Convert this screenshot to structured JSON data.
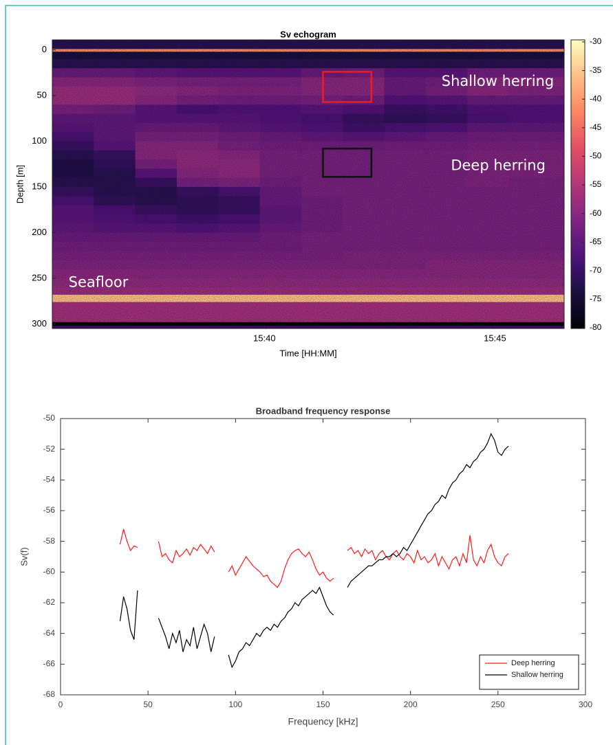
{
  "chart_data": [
    {
      "type": "heatmap",
      "title": "Sv echogram",
      "xlabel": "Time [HH:MM]",
      "ylabel": "Depth [m]",
      "xlim": [
        35.4,
        46.5
      ],
      "xticks": [
        {
          "value": 40,
          "label": "15:40"
        },
        {
          "value": 45,
          "label": "15:45"
        }
      ],
      "ylim": [
        -11,
        305
      ],
      "yticks": [
        0,
        50,
        100,
        150,
        200,
        250,
        300
      ],
      "y_reversed": true,
      "colormap": "magma",
      "zlim": [
        -80,
        -30
      ],
      "zticks": [
        -30,
        -35,
        -40,
        -45,
        -50,
        -55,
        -60,
        -65,
        -70,
        -75,
        -80
      ],
      "xbins": [
        35.4,
        36.3,
        37.2,
        38.1,
        39.0,
        39.9,
        40.8,
        41.7,
        42.6,
        43.5,
        44.4,
        45.3,
        46.5
      ],
      "ybins": [
        -11,
        -1,
        2,
        10,
        20,
        30,
        40,
        50,
        60,
        70,
        80,
        90,
        100,
        110,
        120,
        130,
        140,
        150,
        160,
        170,
        180,
        190,
        200,
        210,
        220,
        230,
        240,
        250,
        260,
        268,
        276,
        298,
        302,
        305
      ],
      "z": [
        [
          -72,
          -72,
          -72,
          -72,
          -72,
          -72,
          -72,
          -72,
          -72,
          -72,
          -72,
          -72
        ],
        [
          -42,
          -42,
          -42,
          -42,
          -42,
          -42,
          -42,
          -42,
          -42,
          -42,
          -42,
          -42
        ],
        [
          -74,
          -74,
          -74,
          -74,
          -74,
          -74,
          -74,
          -74,
          -74,
          -74,
          -74,
          -74
        ],
        [
          -72,
          -72,
          -72,
          -72,
          -72,
          -72,
          -72,
          -72,
          -72,
          -72,
          -72,
          -72
        ],
        [
          -64,
          -64,
          -65,
          -66,
          -66,
          -66,
          -64,
          -63,
          -66,
          -66,
          -63,
          -63
        ],
        [
          -60,
          -60,
          -61,
          -62,
          -62,
          -62,
          -60,
          -60,
          -64,
          -63,
          -60,
          -60
        ],
        [
          -58,
          -58,
          -59,
          -60,
          -61,
          -61,
          -60,
          -60,
          -64,
          -62,
          -60,
          -61
        ],
        [
          -58,
          -58,
          -60,
          -62,
          -63,
          -63,
          -62,
          -63,
          -67,
          -66,
          -64,
          -64
        ],
        [
          -62,
          -63,
          -66,
          -68,
          -67,
          -67,
          -66,
          -67,
          -70,
          -69,
          -67,
          -67
        ],
        [
          -65,
          -65,
          -66,
          -66,
          -66,
          -67,
          -68,
          -70,
          -71,
          -70,
          -68,
          -67
        ],
        [
          -66,
          -65,
          -64,
          -64,
          -65,
          -66,
          -67,
          -69,
          -68,
          -67,
          -65,
          -65
        ],
        [
          -68,
          -65,
          -62,
          -62,
          -63,
          -64,
          -65,
          -66,
          -65,
          -64,
          -63,
          -63
        ],
        [
          -70,
          -66,
          -60,
          -60,
          -62,
          -63,
          -63,
          -63,
          -63,
          -63,
          -62,
          -62
        ],
        [
          -72,
          -70,
          -60,
          -59,
          -60,
          -62,
          -62,
          -62,
          -62,
          -62,
          -61,
          -61
        ],
        [
          -73,
          -71,
          -62,
          -59,
          -59,
          -62,
          -62,
          -62,
          -62,
          -62,
          -61,
          -61
        ],
        [
          -73,
          -72,
          -66,
          -60,
          -59,
          -62,
          -62,
          -62,
          -62,
          -62,
          -61,
          -61
        ],
        [
          -72,
          -72,
          -70,
          -62,
          -61,
          -63,
          -62,
          -62,
          -62,
          -62,
          -61,
          -62
        ],
        [
          -70,
          -72,
          -72,
          -70,
          -68,
          -64,
          -62,
          -62,
          -62,
          -62,
          -62,
          -62
        ],
        [
          -68,
          -71,
          -72,
          -71,
          -70,
          -64,
          -63,
          -62,
          -62,
          -62,
          -62,
          -62
        ],
        [
          -66,
          -68,
          -70,
          -71,
          -70,
          -65,
          -63,
          -62,
          -62,
          -62,
          -62,
          -62
        ],
        [
          -66,
          -67,
          -68,
          -69,
          -68,
          -65,
          -63,
          -62,
          -62,
          -62,
          -62,
          -62
        ],
        [
          -65,
          -66,
          -66,
          -67,
          -66,
          -64,
          -63,
          -62,
          -62,
          -62,
          -62,
          -62
        ],
        [
          -64,
          -64,
          -64,
          -64,
          -64,
          -63,
          -62,
          -62,
          -62,
          -62,
          -62,
          -62
        ],
        [
          -63,
          -63,
          -63,
          -63,
          -63,
          -63,
          -62,
          -62,
          -62,
          -62,
          -62,
          -62
        ],
        [
          -62,
          -62,
          -62,
          -62,
          -62,
          -62,
          -62,
          -61,
          -61,
          -61,
          -61,
          -61
        ],
        [
          -61,
          -61,
          -61,
          -61,
          -61,
          -61,
          -61,
          -61,
          -61,
          -60,
          -60,
          -60
        ],
        [
          -60,
          -60,
          -60,
          -60,
          -60,
          -60,
          -60,
          -60,
          -60,
          -60,
          -60,
          -60
        ],
        [
          -59,
          -59,
          -59,
          -59,
          -59,
          -59,
          -59,
          -59,
          -59,
          -59,
          -59,
          -59
        ],
        [
          -58,
          -58,
          -58,
          -58,
          -58,
          -58,
          -58,
          -58,
          -58,
          -58,
          -58,
          -58
        ],
        [
          -36,
          -36,
          -36,
          -36,
          -36,
          -36,
          -36,
          -36,
          -36,
          -36,
          -36,
          -36
        ],
        [
          -57,
          -57,
          -57,
          -57,
          -57,
          -57,
          -57,
          -57,
          -57,
          -57,
          -57,
          -57
        ],
        [
          -80,
          -80,
          -80,
          -80,
          -80,
          -80,
          -80,
          -80,
          -80,
          -80,
          -80,
          -80
        ],
        [
          -70,
          -70,
          -70,
          -70,
          -70,
          -70,
          -70,
          -70,
          -70,
          -70,
          -70,
          -70
        ]
      ],
      "boxes": [
        {
          "color": "#e3202a",
          "x": [
            41.27,
            42.32
          ],
          "y": [
            24,
            57
          ]
        },
        {
          "color": "#111111",
          "x": [
            41.27,
            42.32
          ],
          "y": [
            108,
            139
          ]
        }
      ],
      "annotations": [
        {
          "text": "Shallow herring",
          "x": 45.06,
          "y": 35,
          "color": "#ffffff"
        },
        {
          "text": "Deep herring",
          "x": 45.07,
          "y": 127,
          "color": "#ffffff"
        },
        {
          "text": "Seafloor",
          "x": 36.4,
          "y": 255,
          "color": "#ffffff"
        }
      ]
    },
    {
      "type": "line",
      "title": "Broadband frequency response",
      "xlabel": "Frequency [kHz]",
      "ylabel": "Sv(f)",
      "xlim": [
        0,
        300
      ],
      "xticks": [
        0,
        50,
        100,
        150,
        200,
        250,
        300
      ],
      "ylim": [
        -68,
        -50
      ],
      "yticks": [
        -68,
        -66,
        -64,
        -62,
        -60,
        -58,
        -56,
        -54,
        -52,
        -50
      ],
      "legend": "lower right",
      "x": [
        34,
        36,
        38,
        40,
        42,
        44,
        46,
        48,
        50,
        52,
        54,
        56,
        58,
        60,
        62,
        64,
        66,
        68,
        70,
        72,
        74,
        76,
        78,
        80,
        82,
        84,
        86,
        88,
        90,
        92,
        94,
        96,
        98,
        100,
        102,
        104,
        106,
        108,
        110,
        112,
        114,
        116,
        118,
        120,
        122,
        124,
        126,
        128,
        130,
        132,
        134,
        136,
        138,
        140,
        142,
        144,
        146,
        148,
        150,
        152,
        154,
        156,
        158,
        160,
        162,
        164,
        166,
        168,
        170,
        172,
        174,
        176,
        178,
        180,
        182,
        184,
        186,
        188,
        190,
        192,
        194,
        196,
        198,
        200,
        202,
        204,
        206,
        208,
        210,
        212,
        214,
        216,
        218,
        220,
        222,
        224,
        226,
        228,
        230,
        232,
        234,
        236,
        238,
        240,
        242,
        244,
        246,
        248,
        250,
        252,
        254,
        256
      ],
      "series": [
        {
          "name": "Deep herring",
          "color": "#ff1a1a",
          "values": [
            -58.2,
            -57.2,
            -58.0,
            -58.6,
            -58.3,
            -58.4,
            null,
            null,
            null,
            null,
            null,
            -58.0,
            -59.0,
            -58.8,
            -59.2,
            -59.4,
            -58.6,
            -59.0,
            -58.8,
            -58.5,
            -58.9,
            -58.4,
            -58.6,
            -58.2,
            -58.5,
            -58.8,
            -58.3,
            -58.7,
            null,
            null,
            null,
            -60.0,
            -59.6,
            -60.2,
            -59.8,
            -59.4,
            -59.0,
            -59.3,
            -59.6,
            -59.8,
            -60.0,
            -60.3,
            -60.2,
            -60.6,
            -60.8,
            -61.0,
            -60.6,
            -59.8,
            -59.2,
            -58.8,
            -58.6,
            -58.5,
            -58.8,
            -59.0,
            -58.7,
            -59.2,
            -59.8,
            -60.2,
            -60.0,
            -60.4,
            -60.6,
            -60.4,
            null,
            null,
            null,
            -58.6,
            -58.4,
            -58.8,
            -58.6,
            -59.0,
            -58.5,
            -58.8,
            -58.6,
            -59.2,
            -58.8,
            -58.6,
            -59.0,
            -59.2,
            -58.8,
            -58.6,
            -59.0,
            -59.2,
            -58.8,
            -59.0,
            -59.4,
            -58.6,
            -59.2,
            -59.0,
            -59.4,
            -59.2,
            -58.8,
            -59.6,
            -59.0,
            -59.4,
            -59.8,
            -59.2,
            -59.0,
            -59.6,
            -58.8,
            -59.4,
            -57.6,
            -59.2,
            -59.6,
            -59.0,
            -59.4,
            -58.6,
            -58.2,
            -59.0,
            -59.4,
            -59.6,
            -59.0,
            -58.8
          ]
        },
        {
          "name": "Shallow herring",
          "color": "#000000",
          "values": [
            -63.2,
            -61.6,
            -62.4,
            -63.8,
            -64.4,
            -61.2,
            null,
            null,
            null,
            null,
            null,
            -63.0,
            -63.6,
            -64.2,
            -65.0,
            -64.0,
            -64.6,
            -63.8,
            -65.2,
            -64.4,
            -64.8,
            -63.6,
            -65.0,
            -64.2,
            -63.4,
            -64.0,
            -65.2,
            -64.2,
            null,
            null,
            null,
            -65.4,
            -66.2,
            -65.8,
            -65.2,
            -65.0,
            -64.6,
            -64.8,
            -64.4,
            -64.0,
            -64.2,
            -63.8,
            -63.6,
            -63.8,
            -63.4,
            -63.6,
            -63.2,
            -63.0,
            -62.6,
            -62.4,
            -62.0,
            -62.2,
            -61.8,
            -61.6,
            -61.4,
            -61.2,
            -61.4,
            -61.0,
            -61.6,
            -62.2,
            -62.6,
            -62.8,
            null,
            null,
            null,
            -61.0,
            -60.6,
            -60.4,
            -60.2,
            -60.0,
            -59.8,
            -59.6,
            -59.6,
            -59.4,
            -59.2,
            -59.2,
            -59.0,
            -59.0,
            -58.8,
            -59.0,
            -58.8,
            -58.4,
            -58.6,
            -58.2,
            -57.8,
            -57.4,
            -57.0,
            -56.6,
            -56.2,
            -56.0,
            -55.6,
            -55.4,
            -55.0,
            -55.2,
            -54.6,
            -54.2,
            -54.0,
            -53.6,
            -53.4,
            -53.0,
            -53.2,
            -52.8,
            -52.6,
            -52.2,
            -52.0,
            -51.6,
            -51.0,
            -51.4,
            -52.2,
            -52.4,
            -52.0,
            -51.8
          ]
        }
      ]
    }
  ]
}
